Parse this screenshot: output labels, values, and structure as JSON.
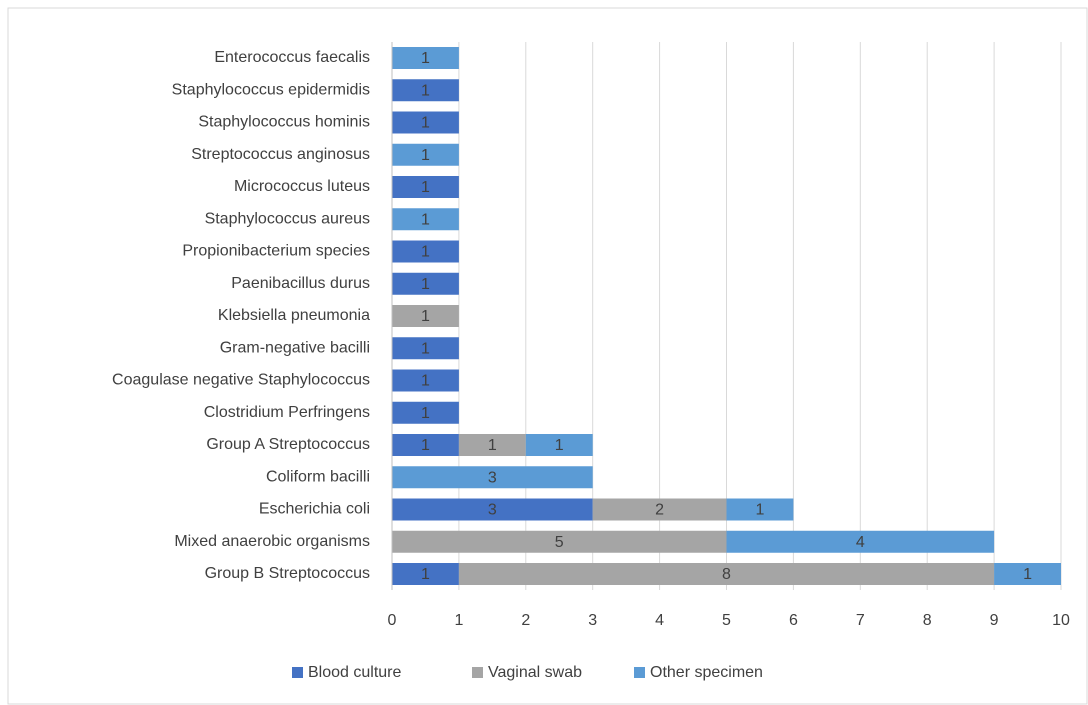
{
  "chart_data": {
    "type": "bar",
    "orientation": "horizontal",
    "stacked": true,
    "categories": [
      "Enterococcus faecalis",
      "Staphylococcus epidermidis",
      "Staphylococcus hominis",
      "Streptococcus anginosus",
      "Micrococcus luteus",
      "Staphylococcus aureus",
      "Propionibacterium species",
      "Paenibacillus durus",
      "Klebsiella pneumonia",
      "Gram-negative bacilli",
      "Coagulase negative Staphylococcus",
      "Clostridium Perfringens",
      "Group A Streptococcus",
      "Coliform bacilli",
      "Escherichia coli",
      "Mixed anaerobic organisms",
      "Group B Streptococcus"
    ],
    "series": [
      {
        "name": "Blood culture",
        "color": "#4472c4",
        "values": [
          null,
          1,
          1,
          null,
          1,
          null,
          1,
          1,
          null,
          1,
          1,
          1,
          1,
          null,
          3,
          null,
          1
        ]
      },
      {
        "name": "Vaginal swab",
        "color": "#a5a5a5",
        "values": [
          null,
          null,
          null,
          null,
          null,
          null,
          null,
          null,
          1,
          null,
          null,
          null,
          1,
          null,
          2,
          5,
          8
        ]
      },
      {
        "name": "Other specimen",
        "color": "#5b9bd5",
        "values": [
          1,
          null,
          null,
          1,
          null,
          1,
          null,
          null,
          null,
          null,
          null,
          null,
          1,
          3,
          1,
          4,
          1
        ]
      }
    ],
    "xlim": [
      0,
      10
    ],
    "xticks": [
      0,
      1,
      2,
      3,
      4,
      5,
      6,
      7,
      8,
      9,
      10
    ],
    "grid": true,
    "legend": "bottom"
  }
}
